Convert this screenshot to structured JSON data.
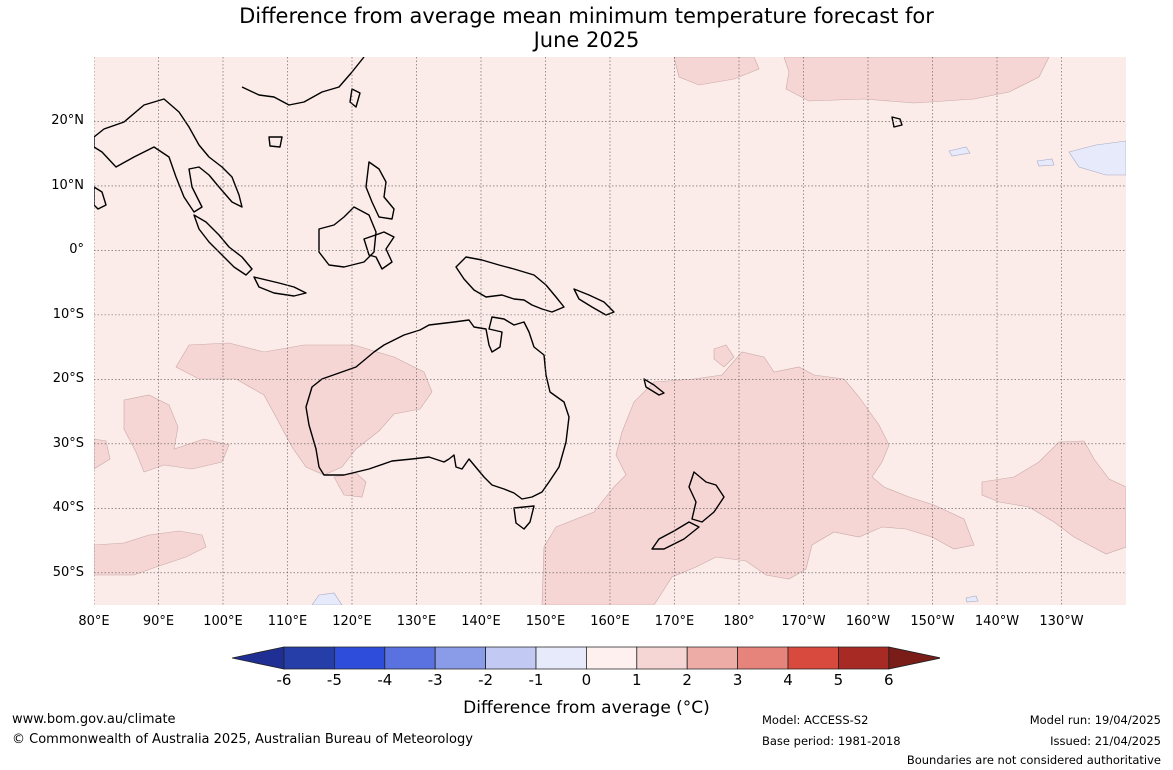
{
  "title_line1": "Difference from average mean minimum temperature forecast for",
  "title_line2": "June 2025",
  "map": {
    "lon_range": [
      80,
      240
    ],
    "lat_range": [
      -55,
      30
    ],
    "lat_labels": [
      {
        "lat": 20,
        "label": "20°N"
      },
      {
        "lat": 10,
        "label": "10°N"
      },
      {
        "lat": 0,
        "label": "0°"
      },
      {
        "lat": -10,
        "label": "10°S"
      },
      {
        "lat": -20,
        "label": "20°S"
      },
      {
        "lat": -30,
        "label": "30°S"
      },
      {
        "lat": -40,
        "label": "40°S"
      },
      {
        "lat": -50,
        "label": "50°S"
      }
    ],
    "lon_labels": [
      {
        "lon": 80,
        "label": "80°E"
      },
      {
        "lon": 90,
        "label": "90°E"
      },
      {
        "lon": 100,
        "label": "100°E"
      },
      {
        "lon": 110,
        "label": "110°E"
      },
      {
        "lon": 120,
        "label": "120°E"
      },
      {
        "lon": 130,
        "label": "130°E"
      },
      {
        "lon": 140,
        "label": "140°E"
      },
      {
        "lon": 150,
        "label": "150°E"
      },
      {
        "lon": 160,
        "label": "160°E"
      },
      {
        "lon": 170,
        "label": "170°E"
      },
      {
        "lon": 180,
        "label": "180°"
      },
      {
        "lon": 190,
        "label": "170°W"
      },
      {
        "lon": 200,
        "label": "160°W"
      },
      {
        "lon": 210,
        "label": "150°W"
      },
      {
        "lon": 220,
        "label": "140°W"
      },
      {
        "lon": 230,
        "label": "130°W"
      }
    ]
  },
  "colorbar": {
    "ticks": [
      "-6",
      "-5",
      "-4",
      "-3",
      "-2",
      "-1",
      "0",
      "1",
      "2",
      "3",
      "4",
      "5",
      "6"
    ],
    "colors": [
      "#1f2f94",
      "#253ea8",
      "#2f4ddb",
      "#5a72e0",
      "#8a9be8",
      "#c2c9f2",
      "#e7eafb",
      "#fdf0ee",
      "#f5d6d4",
      "#eeaca6",
      "#e6847c",
      "#d94a3e",
      "#a82a24",
      "#7a1c18"
    ],
    "label": "Difference from average (°C)"
  },
  "colors": {
    "bg_0_1": "#fbebe9",
    "anomaly_1_2": "#f5d6d4",
    "anomaly_neg1_0": "#e7eafb"
  },
  "footer": {
    "url": "www.bom.gov.au/climate",
    "copyright": "© Commonwealth of Australia 2025, Australian Bureau of Meteorology",
    "model": "Model: ACCESS-S2",
    "base_period": "Base period: 1981-2018",
    "model_run": "Model run: 19/04/2025",
    "issued": "Issued: 21/04/2025",
    "disclaimer": "Boundaries are not considered authoritative"
  }
}
